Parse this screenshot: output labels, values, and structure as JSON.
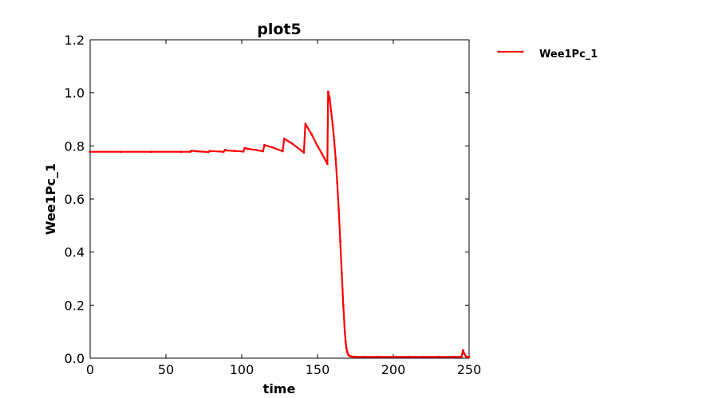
{
  "chart_data": {
    "type": "line",
    "title": "plot5",
    "xlabel": "time",
    "ylabel": "Wee1Pc_1",
    "xlim": [
      0,
      250
    ],
    "ylim": [
      0,
      1.2
    ],
    "xticks": [
      0,
      50,
      100,
      150,
      200,
      250
    ],
    "xtick_labels": [
      "0",
      "50",
      "100",
      "150",
      "200",
      "250"
    ],
    "yticks": [
      0,
      0.2,
      0.4,
      0.6,
      0.8,
      1.0,
      1.2
    ],
    "ytick_labels": [
      "0.0",
      "0.2",
      "0.4",
      "0.6",
      "0.8",
      "1.0",
      "1.2"
    ],
    "grid": false,
    "legend": "outside-top-right",
    "series": [
      {
        "name": "Wee1Pc_1",
        "color": "#ff0000",
        "marker": "dot",
        "x": [
          0,
          20,
          40,
          60,
          66,
          67,
          70,
          78,
          79,
          88,
          89,
          90,
          95,
          101,
          102,
          104,
          110,
          114,
          115,
          120,
          127,
          128,
          133,
          141,
          142,
          146,
          150,
          153,
          156.5,
          157,
          158,
          159,
          160,
          161,
          162,
          163,
          164,
          165,
          166,
          167,
          168,
          168.5,
          169,
          169.5,
          170,
          170.5,
          171,
          172,
          173,
          175,
          180,
          190,
          200,
          210,
          220,
          230,
          240,
          245,
          246,
          247,
          248,
          249,
          250
        ],
        "y": [
          0.778,
          0.778,
          0.778,
          0.778,
          0.778,
          0.782,
          0.78,
          0.777,
          0.781,
          0.778,
          0.785,
          0.783,
          0.781,
          0.779,
          0.792,
          0.789,
          0.784,
          0.78,
          0.803,
          0.795,
          0.78,
          0.827,
          0.81,
          0.775,
          0.883,
          0.845,
          0.8,
          0.77,
          0.732,
          1.005,
          0.98,
          0.93,
          0.88,
          0.82,
          0.75,
          0.66,
          0.56,
          0.44,
          0.32,
          0.2,
          0.1,
          0.065,
          0.04,
          0.025,
          0.017,
          0.012,
          0.009,
          0.007,
          0.006,
          0.005,
          0.005,
          0.005,
          0.005,
          0.005,
          0.005,
          0.005,
          0.005,
          0.005,
          0.03,
          0.015,
          0.006,
          0.005,
          0.005
        ]
      }
    ]
  }
}
